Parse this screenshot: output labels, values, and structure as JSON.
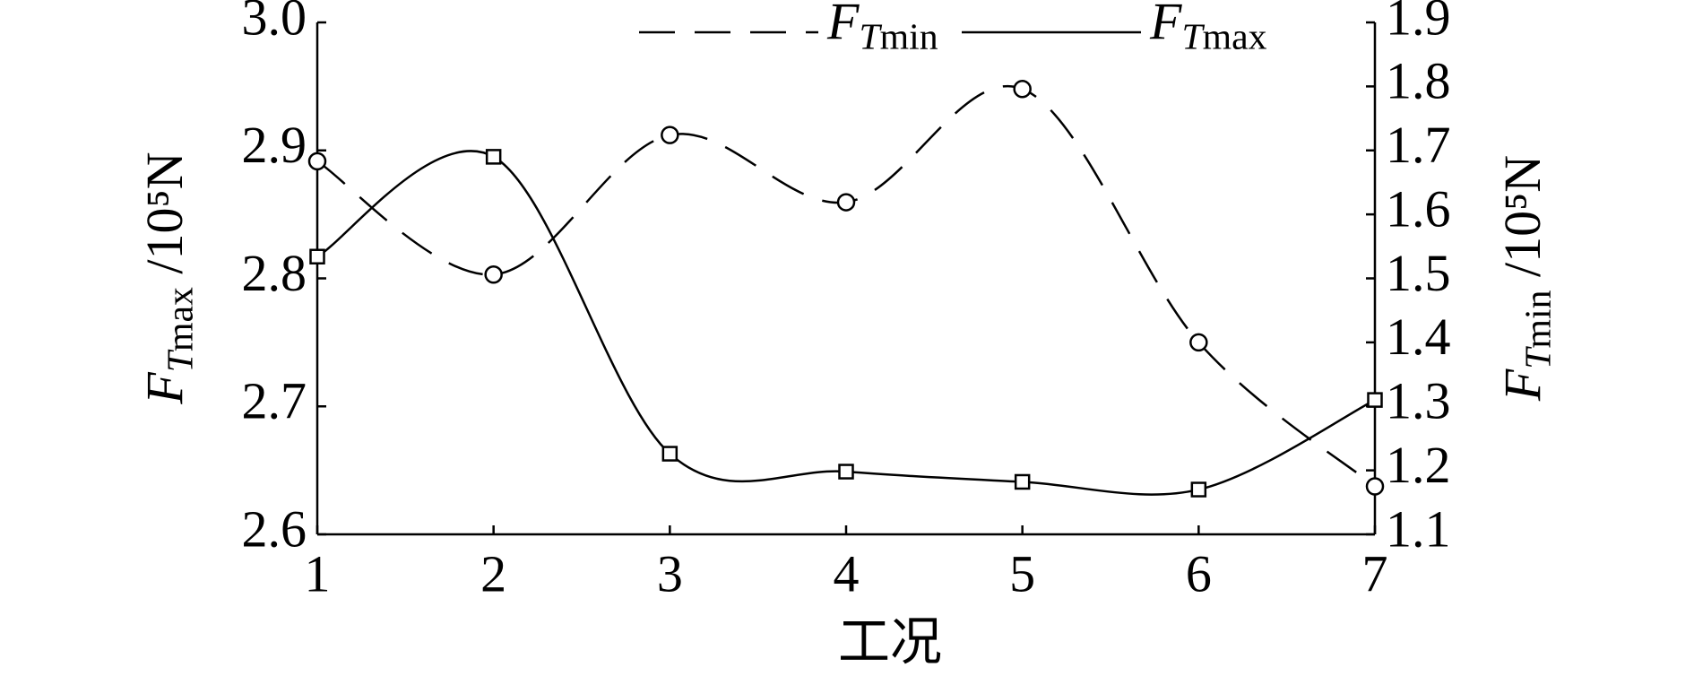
{
  "chart_data": {
    "type": "line",
    "xlabel": "工况",
    "ylabel": "FTmax /10⁵N",
    "y2label": "FTmin /10⁵N",
    "x": [
      1,
      2,
      3,
      4,
      5,
      6,
      7
    ],
    "xlim": [
      1,
      7
    ],
    "xticks": [
      1,
      2,
      3,
      4,
      5,
      6,
      7
    ],
    "ylim": [
      2.6,
      3.0
    ],
    "yticks": [
      2.6,
      2.7,
      2.8,
      2.9,
      {
        "value": 3.0,
        "label": "3.0"
      }
    ],
    "y2lim": [
      1.1,
      1.9
    ],
    "y2ticks": [
      1.1,
      1.2,
      1.3,
      1.4,
      1.5,
      1.6,
      1.7,
      1.8,
      1.9
    ],
    "series": [
      {
        "name": "FTmin",
        "color": "#000000",
        "axis": "y2",
        "linestyle": "dashed",
        "marker": "circle",
        "values": [
          1.683,
          1.506,
          1.724,
          1.619,
          1.796,
          1.4,
          1.175
        ]
      },
      {
        "name": "FTmax",
        "color": "#000000",
        "linestyle": "solid",
        "marker": "square",
        "values": [
          2.817,
          2.895,
          2.663,
          2.649,
          2.641,
          2.635,
          2.705
        ]
      }
    ]
  }
}
